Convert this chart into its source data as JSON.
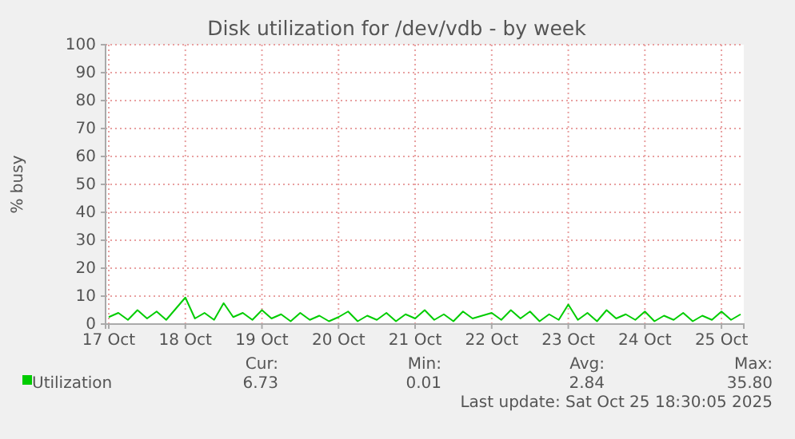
{
  "chart_data": {
    "type": "line",
    "title": "Disk utilization for /dev/vdb - by week",
    "ylabel": "% busy",
    "x": [
      "2025-10-17T00:00",
      "2025-10-17T03:00",
      "2025-10-17T06:00",
      "2025-10-17T09:00",
      "2025-10-17T12:00",
      "2025-10-17T15:00",
      "2025-10-17T18:00",
      "2025-10-17T21:00",
      "2025-10-18T00:00",
      "2025-10-18T03:00",
      "2025-10-18T06:00",
      "2025-10-18T09:00",
      "2025-10-18T12:00",
      "2025-10-18T15:00",
      "2025-10-18T18:00",
      "2025-10-18T21:00",
      "2025-10-19T00:00",
      "2025-10-19T03:00",
      "2025-10-19T06:00",
      "2025-10-19T09:00",
      "2025-10-19T12:00",
      "2025-10-19T15:00",
      "2025-10-19T18:00",
      "2025-10-19T21:00",
      "2025-10-20T00:00",
      "2025-10-20T03:00",
      "2025-10-20T06:00",
      "2025-10-20T09:00",
      "2025-10-20T12:00",
      "2025-10-20T15:00",
      "2025-10-20T18:00",
      "2025-10-20T21:00",
      "2025-10-21T00:00",
      "2025-10-21T03:00",
      "2025-10-21T06:00",
      "2025-10-21T09:00",
      "2025-10-21T12:00",
      "2025-10-21T15:00",
      "2025-10-21T18:00",
      "2025-10-21T21:00",
      "2025-10-22T00:00",
      "2025-10-22T03:00",
      "2025-10-22T06:00",
      "2025-10-22T09:00",
      "2025-10-22T12:00",
      "2025-10-22T15:00",
      "2025-10-22T18:00",
      "2025-10-22T21:00",
      "2025-10-23T00:00",
      "2025-10-23T03:00",
      "2025-10-23T06:00",
      "2025-10-23T09:00",
      "2025-10-23T12:00",
      "2025-10-23T15:00",
      "2025-10-23T18:00",
      "2025-10-23T21:00",
      "2025-10-24T00:00",
      "2025-10-24T03:00",
      "2025-10-24T06:00",
      "2025-10-24T09:00",
      "2025-10-24T12:00",
      "2025-10-24T15:00",
      "2025-10-24T18:00",
      "2025-10-24T21:00",
      "2025-10-25T00:00",
      "2025-10-25T03:00",
      "2025-10-25T06:00"
    ],
    "series": [
      {
        "name": "Utilization",
        "color": "#00cc00",
        "values": [
          2.5,
          4,
          1.5,
          5,
          2,
          4.5,
          1.5,
          5.5,
          9.5,
          2,
          4,
          1.5,
          7.5,
          2.5,
          4,
          1.5,
          5,
          2,
          3.5,
          1,
          4,
          1.5,
          3,
          1,
          2.5,
          4.5,
          1,
          3,
          1.5,
          4,
          1,
          3.5,
          2,
          5,
          1.5,
          3.5,
          1,
          4.5,
          2,
          3,
          4,
          1.5,
          5,
          2,
          4.5,
          1,
          3.5,
          1.5,
          7,
          1.5,
          4,
          1,
          5,
          2,
          3.5,
          1.5,
          4.5,
          1,
          3,
          1.5,
          4,
          1,
          3,
          1.5,
          4.5,
          1.5,
          3.5
        ]
      }
    ],
    "xlim": [
      "2025-10-16T23:00",
      "2025-10-25T07:00"
    ],
    "xticks": [
      {
        "value": "2025-10-17",
        "label": "17 Oct"
      },
      {
        "value": "2025-10-18",
        "label": "18 Oct"
      },
      {
        "value": "2025-10-19",
        "label": "19 Oct"
      },
      {
        "value": "2025-10-20",
        "label": "20 Oct"
      },
      {
        "value": "2025-10-21",
        "label": "21 Oct"
      },
      {
        "value": "2025-10-22",
        "label": "22 Oct"
      },
      {
        "value": "2025-10-23",
        "label": "23 Oct"
      },
      {
        "value": "2025-10-24",
        "label": "24 Oct"
      },
      {
        "value": "2025-10-25",
        "label": "25 Oct"
      }
    ],
    "ylim": [
      0,
      100
    ],
    "yticks": [
      0,
      10,
      20,
      30,
      40,
      50,
      60,
      70,
      80,
      90,
      100
    ],
    "grid": true,
    "legend": "bottom left",
    "line_style": "solid",
    "annotations": [
      "Cur:",
      "Min:",
      "Avg:",
      "Max:",
      "6.73",
      "0.01",
      "2.84",
      "35.80",
      "Last update: Sat Oct 25 18:30:05 2025"
    ]
  }
}
